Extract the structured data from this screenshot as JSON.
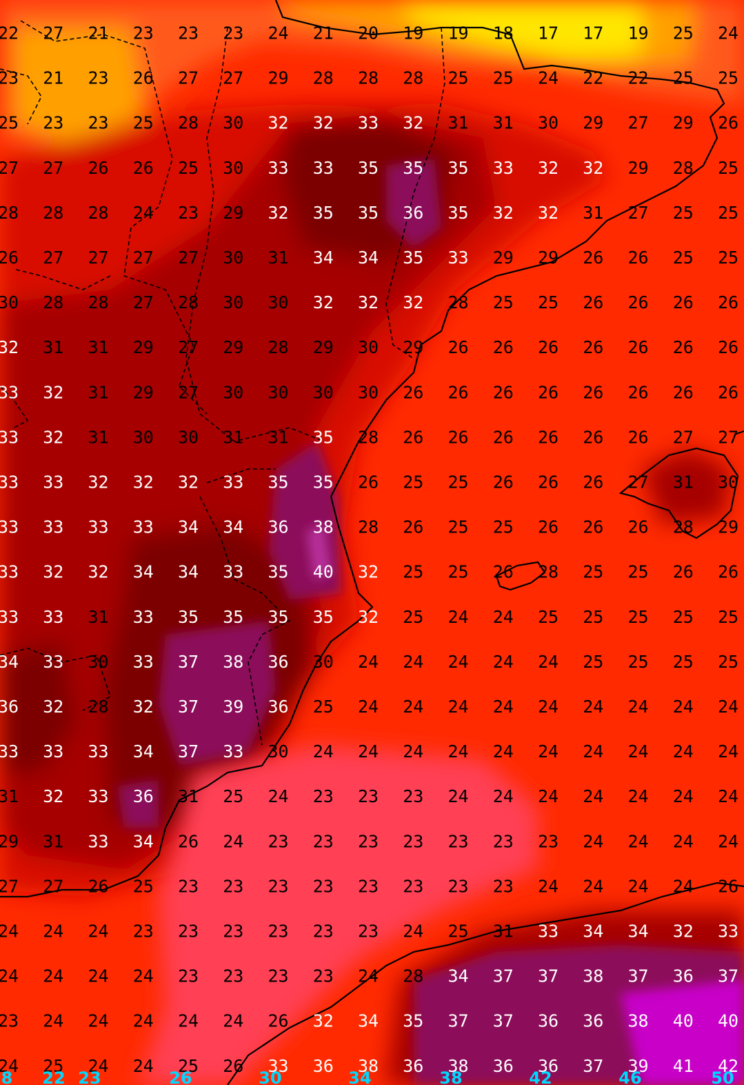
{
  "map": {
    "variable": "temperature",
    "units": "°C",
    "palette": {
      "very_low": "#ffe600",
      "low": "#ffa000",
      "cool": "#ff5a1a",
      "mid": "#ff2a00",
      "sea_pink": "#ff3f55",
      "warm": "#d80c00",
      "hot": "#a60000",
      "very_hot": "#7c0000",
      "extreme": "#8c0f5a",
      "peak": "#c800c8",
      "coast": "#000000"
    },
    "label_colors": {
      "dark": "#000000",
      "light": "#ffffff"
    },
    "grid": [
      [
        22,
        27,
        21,
        23,
        23,
        23,
        24,
        21,
        20,
        19,
        19,
        18,
        17,
        17,
        19,
        25,
        24
      ],
      [
        23,
        21,
        23,
        26,
        27,
        27,
        29,
        28,
        28,
        28,
        25,
        25,
        24,
        22,
        22,
        25,
        25
      ],
      [
        25,
        23,
        23,
        25,
        28,
        30,
        32,
        32,
        33,
        32,
        31,
        31,
        30,
        29,
        27,
        29,
        26
      ],
      [
        27,
        27,
        26,
        26,
        25,
        30,
        33,
        33,
        35,
        35,
        35,
        33,
        32,
        32,
        29,
        28,
        25
      ],
      [
        28,
        28,
        28,
        24,
        23,
        29,
        32,
        35,
        35,
        36,
        35,
        32,
        32,
        31,
        27,
        25,
        25
      ],
      [
        26,
        27,
        27,
        27,
        27,
        30,
        31,
        34,
        34,
        35,
        33,
        29,
        29,
        26,
        26,
        25,
        25
      ],
      [
        30,
        28,
        28,
        27,
        28,
        30,
        30,
        32,
        32,
        32,
        28,
        25,
        25,
        26,
        26,
        26,
        26
      ],
      [
        32,
        31,
        31,
        29,
        27,
        29,
        28,
        29,
        30,
        29,
        26,
        26,
        26,
        26,
        26,
        26,
        26
      ],
      [
        33,
        32,
        31,
        29,
        27,
        30,
        30,
        30,
        30,
        26,
        26,
        26,
        26,
        26,
        26,
        26,
        26
      ],
      [
        33,
        32,
        31,
        30,
        30,
        31,
        31,
        35,
        28,
        26,
        26,
        26,
        26,
        26,
        26,
        27,
        27
      ],
      [
        33,
        33,
        32,
        32,
        32,
        33,
        35,
        35,
        26,
        25,
        25,
        26,
        26,
        26,
        27,
        31,
        30
      ],
      [
        33,
        33,
        33,
        33,
        34,
        34,
        36,
        38,
        28,
        26,
        25,
        25,
        26,
        26,
        26,
        28,
        29
      ],
      [
        33,
        32,
        32,
        34,
        34,
        33,
        35,
        40,
        32,
        25,
        25,
        26,
        28,
        25,
        25,
        26,
        26
      ],
      [
        33,
        33,
        31,
        33,
        35,
        35,
        35,
        35,
        32,
        25,
        24,
        24,
        25,
        25,
        25,
        25,
        25
      ],
      [
        34,
        33,
        30,
        33,
        37,
        38,
        36,
        30,
        24,
        24,
        24,
        24,
        24,
        25,
        25,
        25,
        25
      ],
      [
        36,
        32,
        28,
        32,
        37,
        39,
        36,
        25,
        24,
        24,
        24,
        24,
        24,
        24,
        24,
        24,
        24
      ],
      [
        33,
        33,
        33,
        34,
        37,
        33,
        30,
        24,
        24,
        24,
        24,
        24,
        24,
        24,
        24,
        24,
        24
      ],
      [
        31,
        32,
        33,
        36,
        31,
        25,
        24,
        23,
        23,
        23,
        24,
        24,
        24,
        24,
        24,
        24,
        24
      ],
      [
        29,
        31,
        33,
        34,
        26,
        24,
        23,
        23,
        23,
        23,
        23,
        23,
        23,
        24,
        24,
        24,
        24
      ],
      [
        27,
        27,
        26,
        25,
        23,
        23,
        23,
        23,
        23,
        23,
        23,
        23,
        24,
        24,
        24,
        24,
        26
      ],
      [
        24,
        24,
        24,
        23,
        23,
        23,
        23,
        23,
        23,
        24,
        25,
        31,
        33,
        34,
        34,
        32,
        33
      ],
      [
        24,
        24,
        24,
        24,
        23,
        23,
        23,
        23,
        24,
        28,
        34,
        37,
        37,
        38,
        37,
        36,
        37
      ],
      [
        23,
        24,
        24,
        24,
        24,
        24,
        26,
        32,
        34,
        35,
        37,
        37,
        36,
        36,
        38,
        40,
        40
      ],
      [
        24,
        25,
        24,
        24,
        25,
        26,
        33,
        36,
        38,
        36,
        38,
        36,
        36,
        37,
        39,
        41,
        42
      ]
    ],
    "bottom_ticks": [
      "8",
      "22",
      "23",
      "26",
      "30",
      "34",
      "38",
      "42",
      "46",
      "50"
    ]
  }
}
